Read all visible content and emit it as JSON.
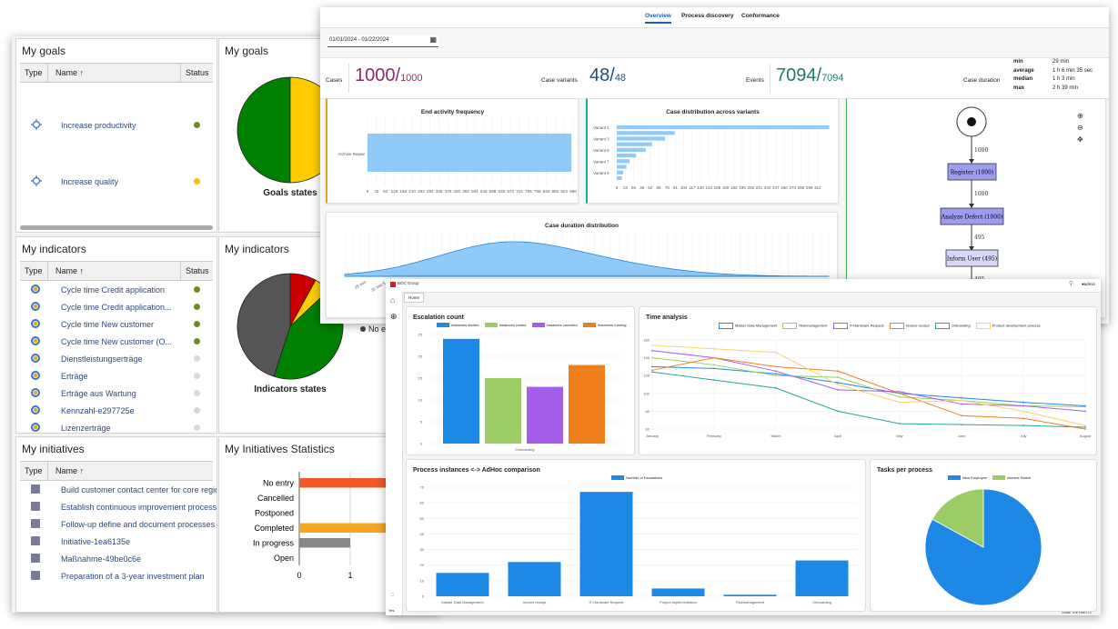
{
  "goals": {
    "title": "My goals",
    "columns": [
      "Type",
      "Name ↑",
      "Status"
    ],
    "rows": [
      {
        "name": "Increase productivity",
        "status_color": "#6b8e23"
      },
      {
        "name": "Increase quality",
        "status_color": "#f2c200"
      }
    ],
    "chart_title": "My goals",
    "chart_label": "Goals states"
  },
  "indicators": {
    "title": "My indicators",
    "columns": [
      "Type",
      "Name ↑",
      "Status"
    ],
    "rows": [
      {
        "name": "Cycle time Credit application",
        "status_color": "#6b8e23"
      },
      {
        "name": "Cycle time Credit application...",
        "status_color": "#6b8e23"
      },
      {
        "name": "Cycle time New customer",
        "status_color": "#6b8e23"
      },
      {
        "name": "Cycle time New customer (O...",
        "status_color": "#6b8e23"
      },
      {
        "name": "Dienstleistungserträge",
        "status_color": "#d8d8d8"
      },
      {
        "name": "Erträge",
        "status_color": "#d8d8d8"
      },
      {
        "name": "Erträge aus Wartung",
        "status_color": "#d8d8d8"
      },
      {
        "name": "Kennzahl-e297725e",
        "status_color": "#d8d8d8"
      },
      {
        "name": "Lizenzerträge",
        "status_color": "#d8d8d8"
      }
    ],
    "chart_title": "My indicators",
    "chart_label": "Indicators states",
    "legend_fragment": "No e"
  },
  "initiatives": {
    "title": "My initiatives",
    "columns": [
      "Type",
      "Name ↑"
    ],
    "rows": [
      "Build customer contact center for core regio",
      "Establish continuous improvement process",
      "Follow-up define and document processes",
      "Initiative-1ea6135e",
      "Maßnahme-49be0c6e",
      "Preparation of a 3-year investment plan"
    ],
    "chart_title": "My Initiatives Statistics"
  },
  "process_mining": {
    "tabs": [
      "Overview",
      "Process discovery",
      "Conformance"
    ],
    "active_tab": "Overview",
    "date_range": "01/01/2024 - 01/22/2024",
    "kpis": {
      "cases_label": "Cases",
      "cases_value": "1000/",
      "cases_total": "1000",
      "variants_label": "Case variants",
      "variants_value": "48/",
      "variants_total": "48",
      "events_label": "Events",
      "events_value": "7094/",
      "events_total": "7094",
      "duration_label": "Case duration",
      "duration_stats": [
        {
          "label": "min",
          "value": "29 min"
        },
        {
          "label": "average",
          "value": "1 h 6 min 35 sec"
        },
        {
          "label": "median",
          "value": "1 h 3 min"
        },
        {
          "label": "max",
          "value": "2 h 39 min"
        }
      ]
    },
    "process_map": {
      "nodes": [
        "Register (1000)",
        "Analyze Defect (1000)",
        "Inform User (495)"
      ],
      "edges": [
        "1000",
        "1000",
        "495",
        "495"
      ]
    }
  },
  "dashboard": {
    "tab_home": "Home",
    "user": "admin",
    "brand": "BOC Group",
    "footer_left": "Yes",
    "footer_right": "Show  The Hub 0.1"
  },
  "chart_data": [
    {
      "type": "pie",
      "title": "Goals states",
      "slices": [
        {
          "label": "",
          "value": 50,
          "color": "#008000"
        },
        {
          "label": "",
          "value": 50,
          "color": "#ffcc00"
        }
      ]
    },
    {
      "type": "pie",
      "title": "Indicators states",
      "slices": [
        {
          "label": "",
          "value": 8,
          "color": "#cc0000"
        },
        {
          "label": "",
          "value": 5,
          "color": "#ffcc00"
        },
        {
          "label": "",
          "value": 42,
          "color": "#008000"
        },
        {
          "label": "",
          "value": 45,
          "color": "#555555"
        }
      ]
    },
    {
      "type": "bar",
      "title": "",
      "orientation": "horizontal",
      "categories": [
        "No entry",
        "Cancelled",
        "Postponed",
        "Completed",
        "In progress",
        "Open"
      ],
      "values": [
        3,
        0,
        0,
        3,
        1,
        0
      ],
      "colors": [
        "#f05a28",
        "#f05a28",
        "#f05a28",
        "#f6a623",
        "#888888",
        "#888888"
      ],
      "xticks": [
        0,
        1
      ]
    },
    {
      "type": "bar",
      "title": "End activity frequency",
      "orientation": "horizontal",
      "categories": [
        "Archive Repair"
      ],
      "values": [
        1000
      ],
      "xticks": [
        "0",
        "42",
        "84",
        "126",
        "168",
        "210",
        "252",
        "294",
        "336",
        "378",
        "420",
        "462",
        "504",
        "546",
        "588",
        "630",
        "672",
        "714",
        "756",
        "798",
        "840",
        "882",
        "924",
        "966"
      ]
    },
    {
      "type": "bar",
      "title": "Case distribution across variants",
      "orientation": "horizontal",
      "categories": [
        "Variant 1",
        "",
        "Variant 3",
        "",
        "Variant 5",
        "",
        "Variant 7",
        "",
        "Variant 9",
        ""
      ],
      "values": [
        330,
        90,
        75,
        55,
        45,
        30,
        20,
        15,
        10,
        8
      ],
      "xticks": [
        "0",
        "13",
        "26",
        "39",
        "52",
        "65",
        "78",
        "91",
        "104",
        "117",
        "130",
        "143",
        "156",
        "169",
        "182",
        "195",
        "208",
        "221",
        "234",
        "247",
        "260",
        "273",
        "286",
        "299",
        "312"
      ]
    },
    {
      "type": "area",
      "title": "Case duration distribution",
      "xticks": [
        "29 min",
        "31 min 5 sec",
        "33 min 15 sec",
        "35 min 26 sec"
      ]
    },
    {
      "type": "bar",
      "title": "Escalation count",
      "categories": [
        "Onboarding"
      ],
      "series": [
        {
          "name": "Instances started",
          "values": [
            24
          ],
          "color": "#1e88e5"
        },
        {
          "name": "Instances closed",
          "values": [
            15
          ],
          "color": "#9ccc65"
        },
        {
          "name": "Instances canceled",
          "values": [
            13
          ],
          "color": "#a55eea"
        },
        {
          "name": "Instances running",
          "values": [
            18
          ],
          "color": "#ef7f1a"
        }
      ],
      "ylim": [
        0,
        25
      ],
      "yticks": [
        0,
        5,
        10,
        15,
        20,
        25
      ]
    },
    {
      "type": "line",
      "title": "Time analysis",
      "categories": [
        "January",
        "February",
        "March",
        "April",
        "May",
        "June",
        "July",
        "August"
      ],
      "ylim": [
        60,
        160
      ],
      "yticks": [
        60,
        80,
        100,
        120,
        140,
        160
      ],
      "series": [
        {
          "name": "Master Data Management",
          "color": "#1e88e5",
          "values": [
            130,
            128,
            122,
            112,
            100,
            95,
            90,
            86
          ]
        },
        {
          "name": "Riskmanagement",
          "color": "#9ccc65",
          "values": [
            140,
            132,
            120,
            118,
            96,
            92,
            86,
            85
          ]
        },
        {
          "name": "IT-Hardware Request",
          "color": "#a55eea",
          "values": [
            148,
            140,
            125,
            104,
            102,
            88,
            86,
            80
          ]
        },
        {
          "name": "Invoice receipt",
          "color": "#ef7f1a",
          "values": [
            126,
            140,
            130,
            125,
            100,
            75,
            72,
            60
          ]
        },
        {
          "name": "Onboarding",
          "color": "#26a69a",
          "values": [
            124,
            115,
            106,
            80,
            66,
            65,
            64,
            62
          ]
        },
        {
          "name": "Product development process",
          "color": "#f6d36b",
          "values": [
            154,
            150,
            146,
            110,
            90,
            92,
            80,
            64
          ]
        }
      ]
    },
    {
      "type": "bar",
      "title": "Process instances <-> AdHoc comparison",
      "categories": [
        "Master Data Management",
        "Invoice receipt",
        "IT-Hardware Request",
        "Project implementation",
        "Riskmanagement",
        "Onboarding"
      ],
      "series": [
        {
          "name": "Number of Escalations",
          "values": [
            15,
            22,
            67,
            5,
            1,
            23
          ],
          "color": "#1e88e5"
        }
      ],
      "ylim": [
        0,
        70
      ],
      "yticks": [
        0,
        10,
        20,
        30,
        40,
        50,
        60,
        70
      ]
    },
    {
      "type": "pie",
      "title": "Tasks per process",
      "slices": [
        {
          "label": "New Employee",
          "value": 83,
          "color": "#1e88e5"
        },
        {
          "label": "Internal Switch",
          "value": 17,
          "color": "#9ccc65"
        }
      ]
    }
  ]
}
